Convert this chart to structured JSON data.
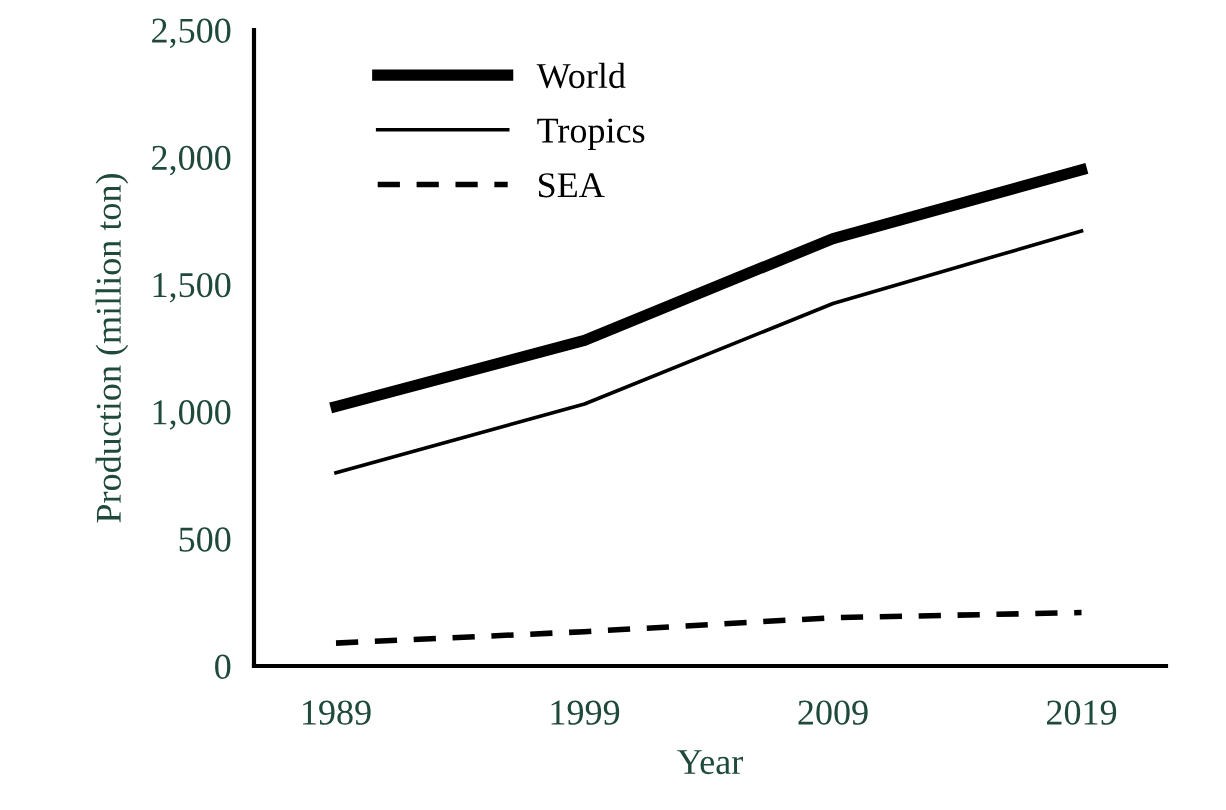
{
  "chart_data": {
    "type": "line",
    "xlabel": "Year",
    "ylabel": "Production (million ton)",
    "categories": [
      "1989",
      "1999",
      "2009",
      "2019"
    ],
    "series": [
      {
        "name": "World",
        "color": "#000000",
        "line_style": "solid",
        "values": [
          1020,
          1280,
          1680,
          1950
        ]
      },
      {
        "name": "Tropics",
        "color": "#000000",
        "line_style": "solid",
        "values": [
          760,
          1030,
          1425,
          1710
        ]
      },
      {
        "name": "SEA",
        "color": "#000000",
        "line_style": "dashed",
        "values": [
          90,
          135,
          190,
          210
        ]
      }
    ],
    "ylim": [
      0,
      2500
    ],
    "yticks": [
      {
        "value": 0,
        "label": "0"
      },
      {
        "value": 500,
        "label": "500"
      },
      {
        "value": 1000,
        "label": "1,000"
      },
      {
        "value": 1500,
        "label": "1,500"
      },
      {
        "value": 2000,
        "label": "2,000"
      },
      {
        "value": 2500,
        "label": "2,500"
      }
    ],
    "grid": false,
    "legend": "top left",
    "marker": "none"
  }
}
